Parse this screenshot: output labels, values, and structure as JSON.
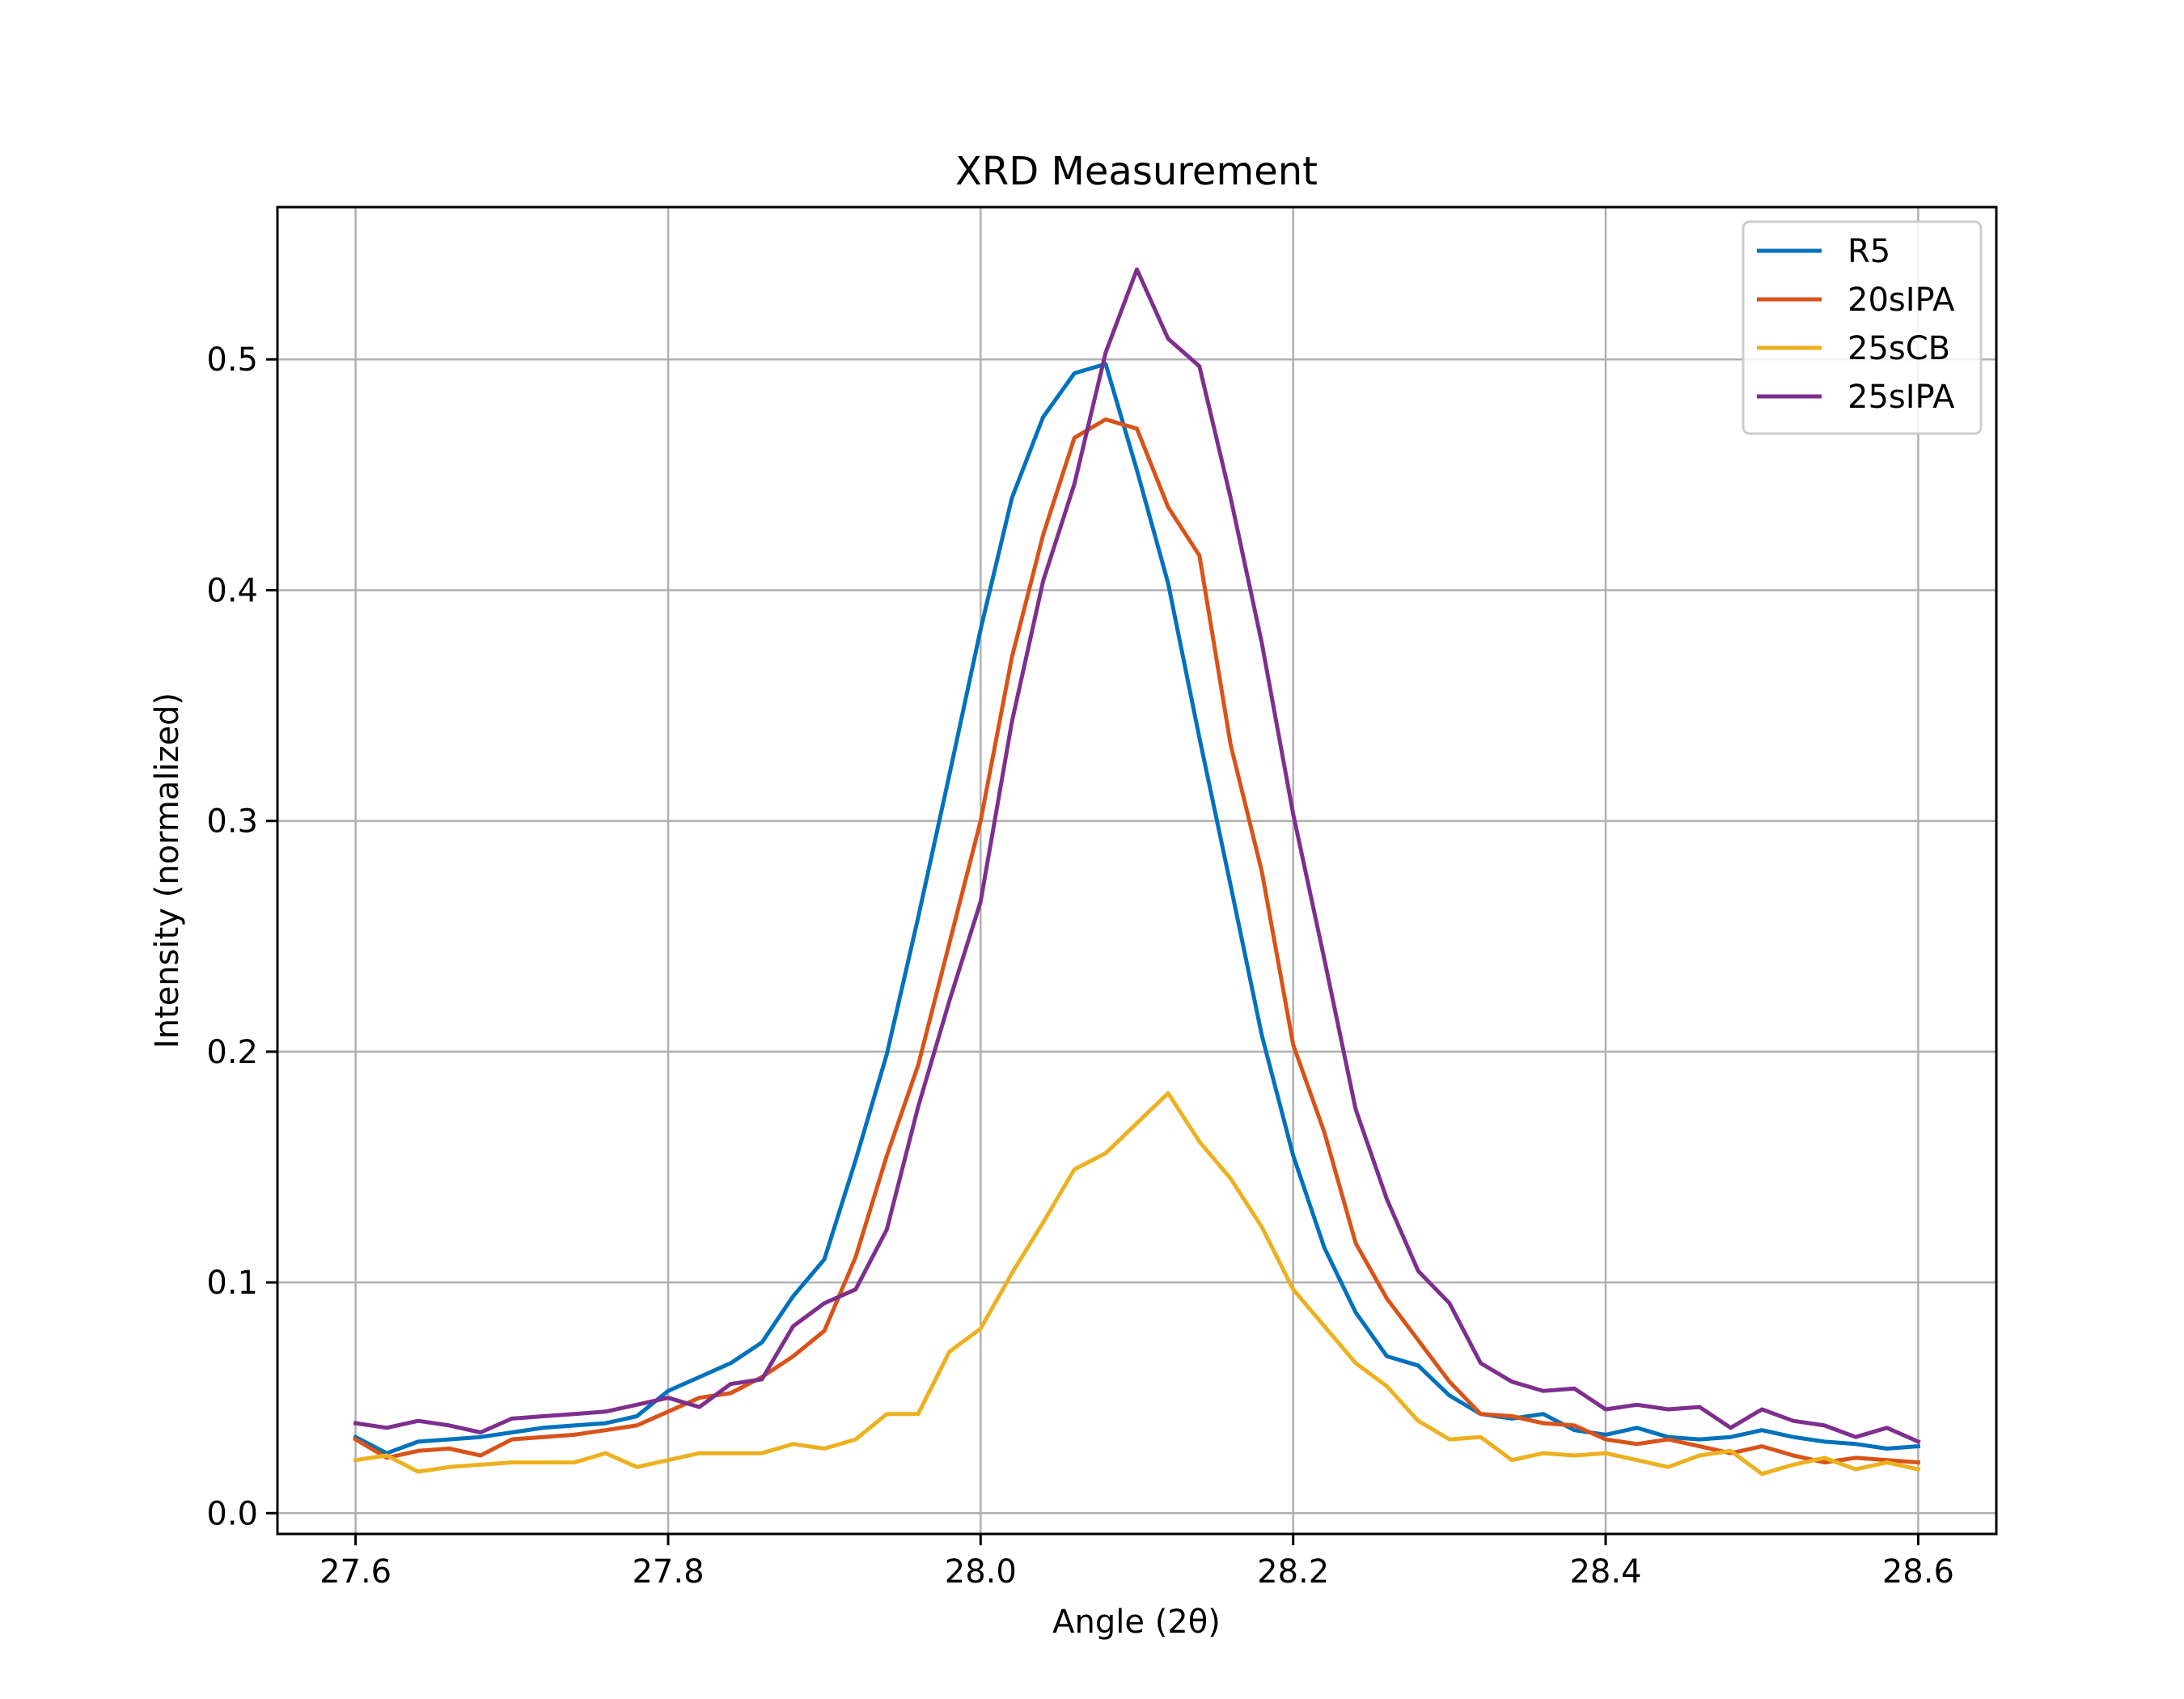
{
  "chart_data": {
    "type": "line",
    "title": "XRD Measurement",
    "xlabel": "Angle (2θ)",
    "ylabel": "Intensity (normalized)",
    "xlim": [
      27.55,
      28.65
    ],
    "ylim": [
      -0.009,
      0.566
    ],
    "xticks": [
      27.6,
      27.8,
      28.0,
      28.2,
      28.4,
      28.6
    ],
    "xtick_labels": [
      "27.6",
      "27.8",
      "28.0",
      "28.2",
      "28.4",
      "28.6"
    ],
    "yticks": [
      0.0,
      0.1,
      0.2,
      0.3,
      0.4,
      0.5
    ],
    "ytick_labels": [
      "0.0",
      "0.1",
      "0.2",
      "0.3",
      "0.4",
      "0.5"
    ],
    "grid": true,
    "legend_position": "top-right",
    "x": [
      27.6,
      27.62,
      27.64,
      27.66,
      27.68,
      27.7,
      27.72,
      27.74,
      27.76,
      27.78,
      27.8,
      27.82,
      27.84,
      27.86,
      27.88,
      27.9,
      27.92,
      27.94,
      27.96,
      27.98,
      28.0,
      28.02,
      28.04,
      28.06,
      28.08,
      28.1,
      28.12,
      28.14,
      28.16,
      28.18,
      28.2,
      28.22,
      28.24,
      28.26,
      28.28,
      28.3,
      28.32,
      28.34,
      28.36,
      28.38,
      28.4,
      28.42,
      28.44,
      28.46,
      28.48,
      28.5,
      28.52,
      28.54,
      28.56,
      28.58,
      28.6
    ],
    "series": [
      {
        "name": "R5",
        "color": "#0072BD",
        "values": [
          0.033,
          0.026,
          0.031,
          0.032,
          0.033,
          0.035,
          0.037,
          0.038,
          0.039,
          0.042,
          0.053,
          0.059,
          0.065,
          0.074,
          0.094,
          0.11,
          0.153,
          0.199,
          0.258,
          0.32,
          0.383,
          0.44,
          0.475,
          0.494,
          0.498,
          0.452,
          0.403,
          0.336,
          0.272,
          0.207,
          0.155,
          0.115,
          0.087,
          0.068,
          0.064,
          0.051,
          0.043,
          0.041,
          0.043,
          0.036,
          0.034,
          0.037,
          0.033,
          0.032,
          0.033,
          0.036,
          0.033,
          0.031,
          0.03,
          0.028,
          0.029
        ]
      },
      {
        "name": "20sIPA",
        "color": "#D95319",
        "values": [
          0.032,
          0.024,
          0.027,
          0.028,
          0.025,
          0.032,
          0.033,
          0.034,
          0.036,
          0.038,
          0.044,
          0.05,
          0.052,
          0.059,
          0.068,
          0.079,
          0.111,
          0.155,
          0.194,
          0.247,
          0.3,
          0.371,
          0.424,
          0.466,
          0.474,
          0.47,
          0.436,
          0.415,
          0.333,
          0.278,
          0.203,
          0.165,
          0.117,
          0.093,
          0.075,
          0.057,
          0.043,
          0.042,
          0.039,
          0.038,
          0.032,
          0.03,
          0.032,
          0.029,
          0.026,
          0.029,
          0.025,
          0.022,
          0.024,
          0.023,
          0.022
        ]
      },
      {
        "name": "25sCB",
        "color": "#EDB120",
        "values": [
          0.023,
          0.025,
          0.018,
          0.02,
          0.021,
          0.022,
          0.022,
          0.022,
          0.026,
          0.02,
          0.023,
          0.026,
          0.026,
          0.026,
          0.03,
          0.028,
          0.032,
          0.043,
          0.043,
          0.07,
          0.08,
          0.104,
          0.126,
          0.149,
          0.156,
          0.169,
          0.182,
          0.161,
          0.145,
          0.124,
          0.097,
          0.081,
          0.065,
          0.055,
          0.04,
          0.032,
          0.033,
          0.023,
          0.026,
          0.025,
          0.026,
          0.023,
          0.02,
          0.025,
          0.027,
          0.017,
          0.021,
          0.024,
          0.019,
          0.022,
          0.019
        ]
      },
      {
        "name": "25sIPA",
        "color": "#7E2F8E",
        "values": [
          0.039,
          0.037,
          0.04,
          0.038,
          0.035,
          0.041,
          0.042,
          0.043,
          0.044,
          0.047,
          0.05,
          0.046,
          0.056,
          0.058,
          0.081,
          0.091,
          0.097,
          0.123,
          0.176,
          0.222,
          0.265,
          0.343,
          0.404,
          0.446,
          0.503,
          0.539,
          0.509,
          0.497,
          0.44,
          0.377,
          0.303,
          0.24,
          0.175,
          0.136,
          0.105,
          0.091,
          0.065,
          0.057,
          0.053,
          0.054,
          0.045,
          0.047,
          0.045,
          0.046,
          0.037,
          0.045,
          0.04,
          0.038,
          0.033,
          0.037,
          0.031
        ]
      }
    ]
  }
}
